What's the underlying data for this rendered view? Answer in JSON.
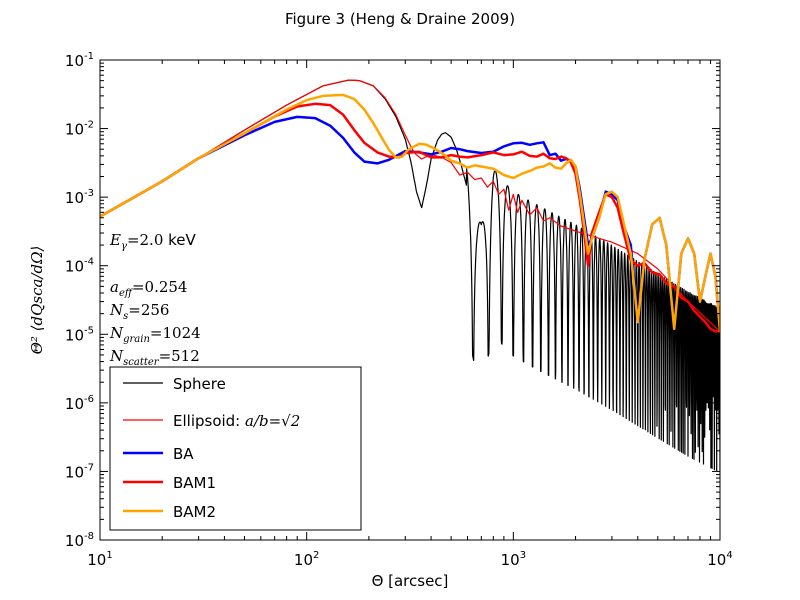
{
  "chart_data": {
    "type": "line",
    "title": "Figure 3 (Heng & Draine 2009)",
    "xlabel": "Θ [arcsec]",
    "ylabel": "Θ² ⟨dQsca/dΩ⟩",
    "xscale": "log",
    "yscale": "log",
    "xlim": [
      10,
      10000
    ],
    "ylim": [
      1e-08,
      0.1
    ],
    "grid": false,
    "legend_position": "lower-left",
    "x_ticks": [
      {
        "value": 10,
        "base": "10",
        "exp": "1"
      },
      {
        "value": 100,
        "base": "10",
        "exp": "2"
      },
      {
        "value": 1000,
        "base": "10",
        "exp": "3"
      },
      {
        "value": 10000,
        "base": "10",
        "exp": "4"
      }
    ],
    "y_ticks": [
      {
        "value": 1e-08,
        "base": "10",
        "exp": "-8"
      },
      {
        "value": 1e-07,
        "base": "10",
        "exp": "-7"
      },
      {
        "value": 1e-06,
        "base": "10",
        "exp": "-6"
      },
      {
        "value": 1e-05,
        "base": "10",
        "exp": "-5"
      },
      {
        "value": 0.0001,
        "base": "10",
        "exp": "-4"
      },
      {
        "value": 0.001,
        "base": "10",
        "exp": "-3"
      },
      {
        "value": 0.01,
        "base": "10",
        "exp": "-2"
      },
      {
        "value": 0.1,
        "base": "10",
        "exp": "-1"
      }
    ],
    "annotations": {
      "energy": {
        "symbol": "E",
        "sub": "γ",
        "value": "=2.0",
        "unit": " keV"
      },
      "aeff": {
        "symbol": "a",
        "sub": "eff",
        "value": "=0.254"
      },
      "ns": {
        "symbol": "N",
        "sub": "s",
        "value": "=256"
      },
      "ngrain": {
        "symbol": "N",
        "sub": "grain",
        "value": "=1024"
      },
      "nscatter": {
        "symbol": "N",
        "sub": "scatter",
        "value": "=512"
      }
    },
    "legend": [
      {
        "label": "Sphere",
        "color": "#000000"
      },
      {
        "label": "Ellipsoid: ",
        "math": "a/b=√2",
        "color": "#ff0000"
      },
      {
        "label": "BA",
        "color": "#0000ff"
      },
      {
        "label": "BAM1",
        "color": "#ff0000"
      },
      {
        "label": "BAM2",
        "color": "#ffa500"
      }
    ],
    "series": [
      {
        "name": "Sphere",
        "color": "#000000",
        "width": 1.2,
        "oscillate": {
          "start": 270,
          "spacing": 120,
          "phase": 0.55,
          "power": 0.6
        },
        "x": [
          10,
          20,
          30,
          50,
          80,
          120,
          160,
          180,
          210,
          240,
          270,
          300,
          320,
          340,
          360,
          380,
          400,
          430,
          450,
          470,
          500,
          530,
          560,
          600,
          650,
          700,
          800,
          900,
          1000,
          1200,
          1500,
          2000,
          3000,
          5000,
          7000,
          10000
        ],
        "y": [
          0.00052,
          0.0017,
          0.0037,
          0.0095,
          0.022,
          0.042,
          0.051,
          0.05,
          0.042,
          0.027,
          0.015,
          0.007,
          0.0032,
          0.0012,
          0.0007,
          0.0015,
          0.0036,
          0.0068,
          0.0083,
          0.0087,
          0.0075,
          0.005,
          0.0029,
          0.0013,
          0.0004,
          0.00018,
          0.0012,
          0.00075,
          0.00055,
          0.0004,
          0.00028,
          0.00018,
          9e-05,
          3.5e-05,
          1.9e-05,
          1.1e-05
        ]
      },
      {
        "name": "Ellipsoid: a/b=√2",
        "color": "#ff0000",
        "width": 1.2,
        "x": [
          10,
          20,
          30,
          50,
          80,
          120,
          160,
          180,
          210,
          240,
          270,
          300,
          330,
          360,
          400,
          450,
          500,
          550,
          600,
          650,
          700,
          750,
          800,
          850,
          900,
          950,
          1000,
          1050,
          1100,
          1200,
          1300,
          1400,
          1500,
          1700,
          2000,
          2500,
          3000,
          4000,
          5000,
          7000,
          10000
        ],
        "y": [
          0.00052,
          0.0017,
          0.0037,
          0.0095,
          0.022,
          0.042,
          0.051,
          0.05,
          0.042,
          0.028,
          0.016,
          0.008,
          0.0045,
          0.0036,
          0.0042,
          0.0038,
          0.0032,
          0.0021,
          0.0023,
          0.0018,
          0.0019,
          0.0014,
          0.0017,
          0.0011,
          0.0013,
          0.00065,
          0.0011,
          0.0006,
          0.0009,
          0.00055,
          0.0007,
          0.00045,
          0.0005,
          0.00038,
          0.00032,
          0.00026,
          0.00022,
          0.00015,
          9e-05,
          3e-05,
          1.1e-05
        ]
      },
      {
        "name": "BA",
        "color": "#0000ff",
        "width": 2.5,
        "x": [
          10,
          20,
          30,
          50,
          70,
          90,
          110,
          130,
          150,
          170,
          190,
          220,
          250,
          300,
          350,
          400,
          450,
          500,
          550,
          600,
          700,
          800,
          900,
          1000,
          1100,
          1200,
          1300,
          1400,
          1500,
          1600,
          1700,
          1800,
          1900,
          2000,
          2100,
          2200,
          2300,
          2400,
          2600,
          2800,
          3000,
          3200,
          3400,
          3700,
          4000,
          4300,
          4700,
          5100,
          5500,
          6000,
          6500,
          7000,
          7500,
          8000,
          8500,
          9000,
          9500,
          10000
        ],
        "y": [
          0.00052,
          0.0017,
          0.0037,
          0.008,
          0.0125,
          0.0148,
          0.0142,
          0.011,
          0.0073,
          0.0045,
          0.0033,
          0.0031,
          0.0035,
          0.0047,
          0.0045,
          0.0042,
          0.0046,
          0.0052,
          0.005,
          0.0047,
          0.0044,
          0.0046,
          0.0055,
          0.0061,
          0.0062,
          0.0058,
          0.0061,
          0.0063,
          0.0041,
          0.0043,
          0.0034,
          0.0036,
          0.0034,
          0.0028,
          0.0013,
          0.0005,
          0.0002,
          0.00025,
          0.0005,
          0.0012,
          0.0011,
          0.0009,
          0.0004,
          0.0002,
          1.5e-05,
          0.00012,
          0.0004,
          0.0005,
          0.0002,
          1.2e-05,
          0.00015,
          0.00025,
          0.00015,
          3e-05,
          7e-05,
          0.00015,
          7e-05,
          1.1e-05
        ]
      },
      {
        "name": "BAM1",
        "color": "#ff0000",
        "width": 2.5,
        "x": [
          10,
          20,
          30,
          50,
          70,
          90,
          110,
          130,
          150,
          170,
          190,
          220,
          250,
          280,
          300,
          350,
          400,
          450,
          500,
          550,
          600,
          700,
          800,
          900,
          1000,
          1100,
          1200,
          1300,
          1400,
          1500,
          1600,
          1700,
          1800,
          1900,
          2000,
          2100,
          2200,
          2300,
          2400,
          2600,
          2800,
          3000,
          3200,
          3400,
          3700,
          4000,
          4300,
          4700,
          5100,
          5500,
          6000,
          6500,
          7000,
          7500,
          8000,
          8500,
          9000,
          9500,
          10000
        ],
        "y": [
          0.00052,
          0.0017,
          0.0037,
          0.0085,
          0.015,
          0.021,
          0.023,
          0.022,
          0.016,
          0.0095,
          0.0062,
          0.0045,
          0.0039,
          0.0038,
          0.0044,
          0.0046,
          0.0038,
          0.0038,
          0.0041,
          0.0039,
          0.0038,
          0.0041,
          0.0045,
          0.0041,
          0.0042,
          0.0046,
          0.004,
          0.0039,
          0.0043,
          0.0037,
          0.0036,
          0.0039,
          0.0037,
          0.0032,
          0.0022,
          0.0009,
          0.0003,
          0.0001,
          0.0003,
          0.0006,
          0.0011,
          0.001,
          0.0007,
          0.00032,
          0.00012,
          0.0001,
          0.00011,
          8e-05,
          7.5e-05,
          5.5e-05,
          5e-05,
          3.4e-05,
          3e-05,
          2.2e-05,
          1.8e-05,
          1.5e-05,
          1.2e-05,
          1.1e-05,
          1.1e-05
        ]
      },
      {
        "name": "BAM2",
        "color": "#ffa500",
        "width": 2.5,
        "x": [
          10,
          20,
          30,
          50,
          80,
          100,
          120,
          150,
          170,
          190,
          210,
          230,
          250,
          270,
          290,
          310,
          350,
          380,
          410,
          440,
          470,
          500,
          550,
          600,
          650,
          700,
          800,
          900,
          1000,
          1100,
          1200,
          1300,
          1400,
          1500,
          1600,
          1700,
          1800,
          1900,
          2000,
          2100,
          2200,
          2300,
          2400,
          2600,
          2800,
          3000,
          3200,
          3400,
          3700,
          4000,
          4300,
          4700,
          5100,
          5500,
          6000,
          6500,
          7000,
          7500,
          8000,
          8500,
          9000,
          9500,
          10000
        ],
        "y": [
          0.00052,
          0.0017,
          0.0037,
          0.0085,
          0.019,
          0.026,
          0.03,
          0.031,
          0.027,
          0.019,
          0.012,
          0.0075,
          0.0049,
          0.0038,
          0.0039,
          0.0049,
          0.006,
          0.0058,
          0.0052,
          0.0046,
          0.004,
          0.0034,
          0.0031,
          0.0027,
          0.0029,
          0.0028,
          0.0026,
          0.0021,
          0.0019,
          0.0022,
          0.0024,
          0.0027,
          0.0028,
          0.0031,
          0.0027,
          0.0026,
          0.0031,
          0.0035,
          0.0028,
          0.0011,
          0.0004,
          0.00015,
          0.00025,
          0.0005,
          0.0011,
          0.0012,
          0.001,
          0.00045,
          0.00015,
          1.5e-05,
          0.00012,
          0.0004,
          0.0005,
          0.0002,
          1.2e-05,
          0.00015,
          0.00025,
          0.00015,
          3e-05,
          7e-05,
          0.00015,
          7e-05,
          1.1e-05
        ]
      }
    ]
  }
}
